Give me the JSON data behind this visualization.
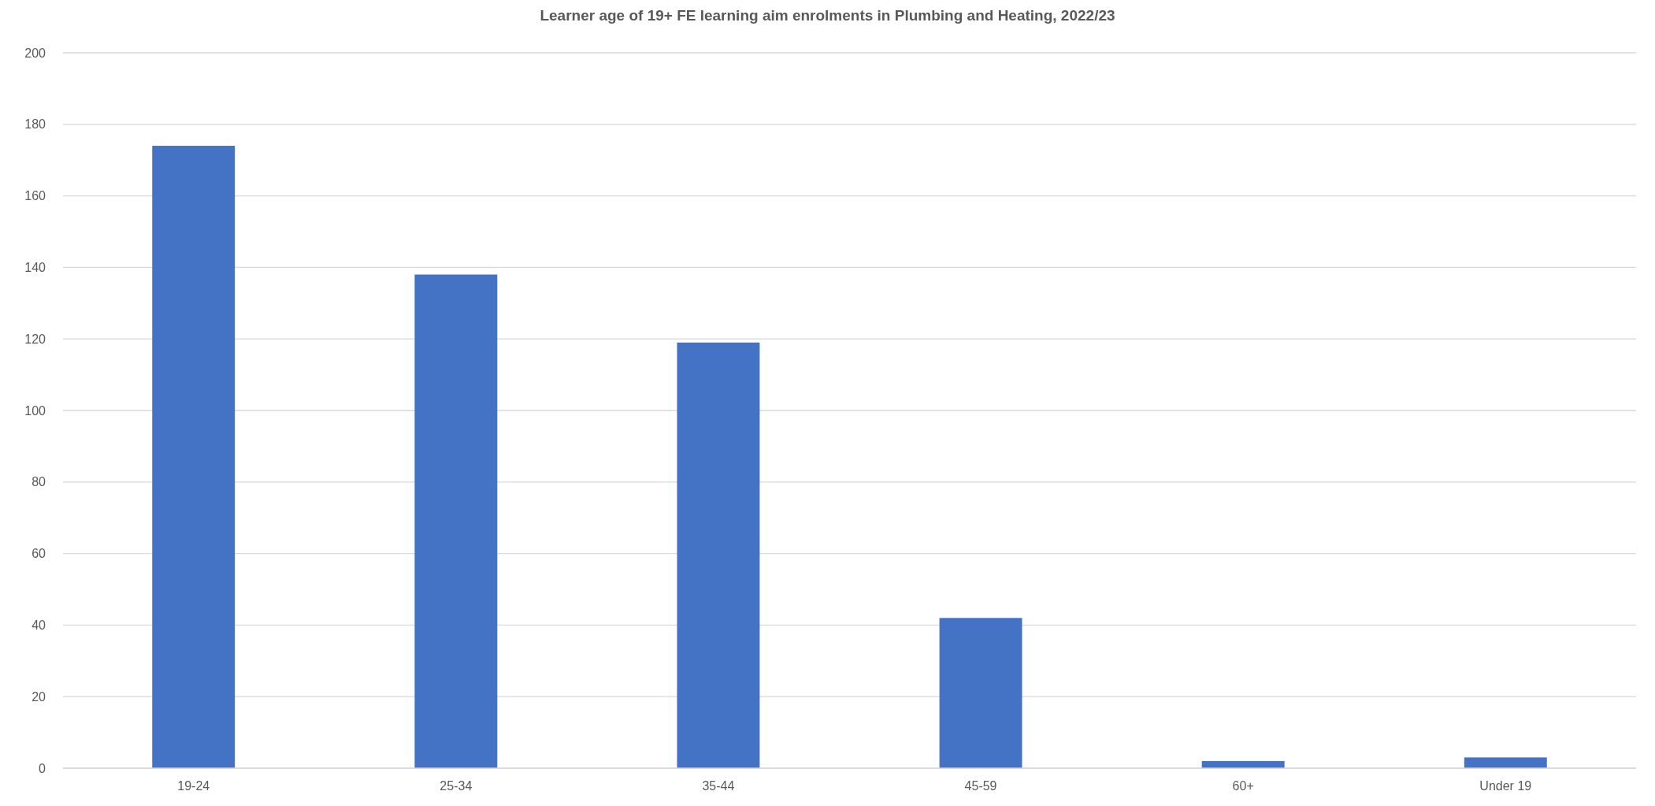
{
  "chart_data": {
    "type": "bar",
    "title": "Learner age of 19+ FE learning aim enrolments in Plumbing and Heating, 2022/23",
    "categories": [
      "19-24",
      "25-34",
      "35-44",
      "45-59",
      "60+",
      "Under 19"
    ],
    "values": [
      174,
      138,
      119,
      42,
      2,
      3
    ],
    "color": "#4472c4",
    "ylim": [
      0,
      200
    ],
    "yticks": [
      0,
      20,
      40,
      60,
      80,
      100,
      120,
      140,
      160,
      180,
      200
    ],
    "grid": "y"
  }
}
